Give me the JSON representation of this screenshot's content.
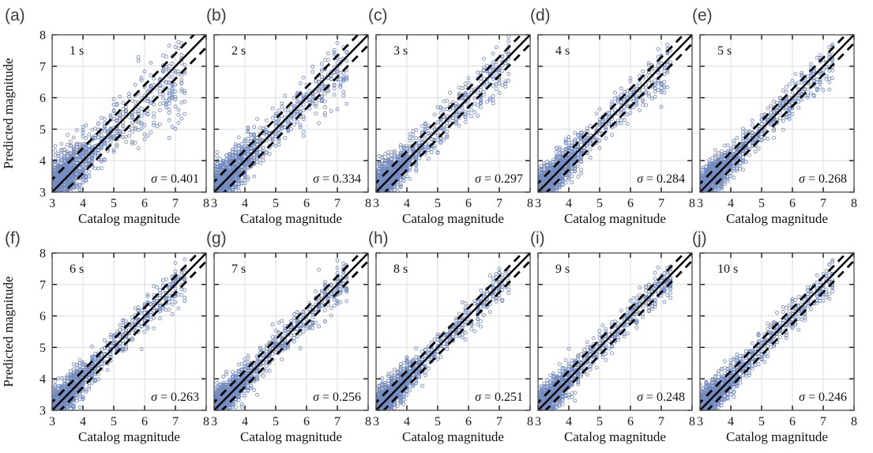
{
  "figure": {
    "xlabel": "Catalog magnitude",
    "ylabel": "Predicted magnitude",
    "xlim": [
      3,
      8
    ],
    "ylim": [
      3,
      8
    ],
    "xticks": [
      "3",
      "4",
      "5",
      "6",
      "7",
      "8"
    ],
    "yticks": [
      "3",
      "4",
      "5",
      "6",
      "7",
      "8"
    ],
    "grid": true,
    "sigma_symbol": "σ",
    "marker_color": "#4161a8",
    "line_color": "#000000",
    "grid_color": "#dcdcdc",
    "frame_color": "#4a4a4a",
    "panel_letter_color": "#3d3d3d",
    "legend_position": "none"
  },
  "chart_data": [
    {
      "type": "scatter",
      "panel": "(a)",
      "window_label": "1 s",
      "sigma": 0.401,
      "sigma_label": "σ = 0.401",
      "sigma_eq": "= 0.401",
      "xlabel": "Catalog magnitude",
      "ylabel": "Predicted magnitude",
      "xlim": [
        3,
        8
      ],
      "ylim": [
        3,
        8
      ],
      "reference_lines": {
        "solid": "y = x",
        "dashed": "y = x ± σ"
      }
    },
    {
      "type": "scatter",
      "panel": "(b)",
      "window_label": "2 s",
      "sigma": 0.334,
      "sigma_label": "σ = 0.334",
      "sigma_eq": "= 0.334",
      "xlabel": "Catalog magnitude",
      "ylabel": "Predicted magnitude",
      "xlim": [
        3,
        8
      ],
      "ylim": [
        3,
        8
      ],
      "reference_lines": {
        "solid": "y = x",
        "dashed": "y = x ± σ"
      }
    },
    {
      "type": "scatter",
      "panel": "(c)",
      "window_label": "3 s",
      "sigma": 0.297,
      "sigma_label": "σ = 0.297",
      "sigma_eq": "= 0.297",
      "xlabel": "Catalog magnitude",
      "ylabel": "Predicted magnitude",
      "xlim": [
        3,
        8
      ],
      "ylim": [
        3,
        8
      ],
      "reference_lines": {
        "solid": "y = x",
        "dashed": "y = x ± σ"
      }
    },
    {
      "type": "scatter",
      "panel": "(d)",
      "window_label": "4 s",
      "sigma": 0.284,
      "sigma_label": "σ = 0.284",
      "sigma_eq": "= 0.284",
      "xlabel": "Catalog magnitude",
      "ylabel": "Predicted magnitude",
      "xlim": [
        3,
        8
      ],
      "ylim": [
        3,
        8
      ],
      "reference_lines": {
        "solid": "y = x",
        "dashed": "y = x ± σ"
      }
    },
    {
      "type": "scatter",
      "panel": "(e)",
      "window_label": "5 s",
      "sigma": 0.268,
      "sigma_label": "σ = 0.268",
      "sigma_eq": "= 0.268",
      "xlabel": "Catalog magnitude",
      "ylabel": "Predicted magnitude",
      "xlim": [
        3,
        8
      ],
      "ylim": [
        3,
        8
      ],
      "reference_lines": {
        "solid": "y = x",
        "dashed": "y = x ± σ"
      }
    },
    {
      "type": "scatter",
      "panel": "(f)",
      "window_label": "6 s",
      "sigma": 0.263,
      "sigma_label": "σ = 0.263",
      "sigma_eq": "= 0.263",
      "xlabel": "Catalog magnitude",
      "ylabel": "Predicted magnitude",
      "xlim": [
        3,
        8
      ],
      "ylim": [
        3,
        8
      ],
      "reference_lines": {
        "solid": "y = x",
        "dashed": "y = x ± σ"
      }
    },
    {
      "type": "scatter",
      "panel": "(g)",
      "window_label": "7 s",
      "sigma": 0.256,
      "sigma_label": "σ = 0.256",
      "sigma_eq": "= 0.256",
      "xlabel": "Catalog magnitude",
      "ylabel": "Predicted magnitude",
      "xlim": [
        3,
        8
      ],
      "ylim": [
        3,
        8
      ],
      "reference_lines": {
        "solid": "y = x",
        "dashed": "y = x ± σ"
      }
    },
    {
      "type": "scatter",
      "panel": "(h)",
      "window_label": "8 s",
      "sigma": 0.251,
      "sigma_label": "σ = 0.251",
      "sigma_eq": "= 0.251",
      "xlabel": "Catalog magnitude",
      "ylabel": "Predicted magnitude",
      "xlim": [
        3,
        8
      ],
      "ylim": [
        3,
        8
      ],
      "reference_lines": {
        "solid": "y = x",
        "dashed": "y = x ± σ"
      }
    },
    {
      "type": "scatter",
      "panel": "(i)",
      "window_label": "9 s",
      "sigma": 0.248,
      "sigma_label": "σ = 0.248",
      "sigma_eq": "= 0.248",
      "xlabel": "Catalog magnitude",
      "ylabel": "Predicted magnitude",
      "xlim": [
        3,
        8
      ],
      "ylim": [
        3,
        8
      ],
      "reference_lines": {
        "solid": "y = x",
        "dashed": "y = x ± σ"
      }
    },
    {
      "type": "scatter",
      "panel": "(j)",
      "window_label": "10 s",
      "sigma": 0.246,
      "sigma_label": "σ = 0.246",
      "sigma_eq": "= 0.246",
      "xlabel": "Catalog magnitude",
      "ylabel": "Predicted magnitude",
      "xlim": [
        3,
        8
      ],
      "ylim": [
        3,
        8
      ],
      "reference_lines": {
        "solid": "y = x",
        "dashed": "y = x ± σ"
      }
    }
  ]
}
